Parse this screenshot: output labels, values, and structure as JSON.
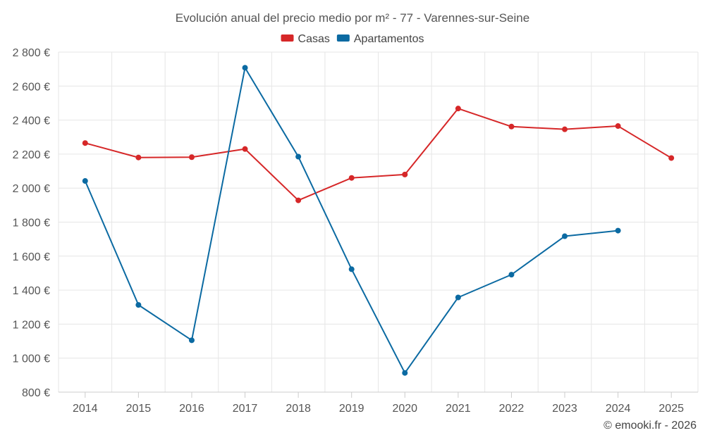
{
  "chart_data": {
    "type": "line",
    "title": "Evolución anual del precio medio por m² - 77 - Varennes-sur-Seine",
    "categories": [
      "2014",
      "2015",
      "2016",
      "2017",
      "2018",
      "2019",
      "2020",
      "2021",
      "2022",
      "2023",
      "2024",
      "2025"
    ],
    "ylim": [
      800,
      2800
    ],
    "yticks": [
      800,
      1000,
      1200,
      1400,
      1600,
      1800,
      2000,
      2200,
      2400,
      2600,
      2800
    ],
    "ytick_labels": [
      "800 €",
      "1 000 €",
      "1 200 €",
      "1 400 €",
      "1 600 €",
      "1 800 €",
      "2 000 €",
      "2 200 €",
      "2 400 €",
      "2 600 €",
      "2 800 €"
    ],
    "grid": true,
    "legend_position": "top-center",
    "series": [
      {
        "name": "Casas",
        "color": "#d62728",
        "values": [
          2265,
          2180,
          2182,
          2230,
          1928,
          2060,
          2080,
          2468,
          2362,
          2346,
          2365,
          2177
        ]
      },
      {
        "name": "Apartamentos",
        "color": "#0b6aa2",
        "values": [
          2042,
          1313,
          1105,
          2708,
          2185,
          1523,
          913,
          1357,
          1491,
          1717,
          1750,
          null
        ]
      }
    ]
  },
  "credit": "© emooki.fr - 2026"
}
